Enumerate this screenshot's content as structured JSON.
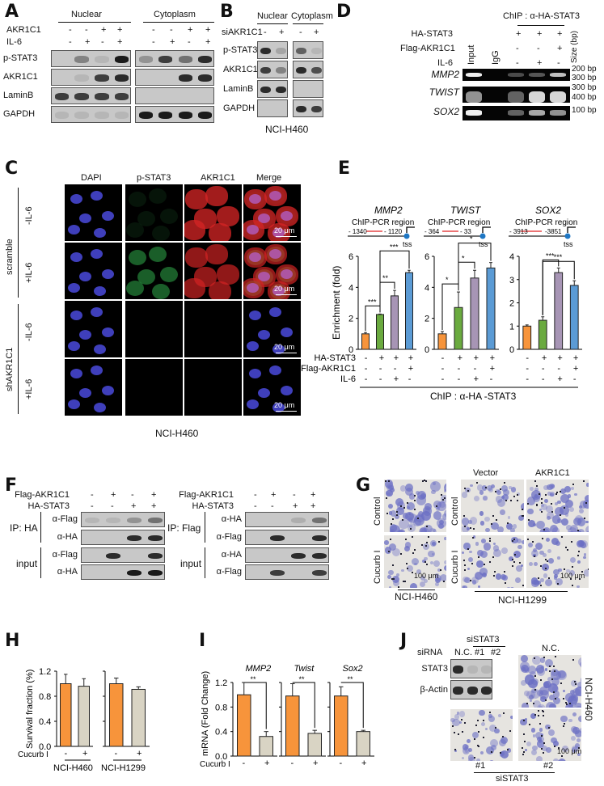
{
  "panels": {
    "A": "A",
    "B": "B",
    "C": "C",
    "D": "D",
    "E": "E",
    "F": "F",
    "G": "G",
    "H": "H",
    "I": "I",
    "J": "J"
  },
  "A": {
    "nuclear": "Nuclear",
    "cytoplasm": "Cytoplasm",
    "rows": [
      "AKR1C1",
      "IL-6"
    ],
    "signs": [
      [
        "-",
        "-",
        "+",
        "+",
        "-",
        "-",
        "+",
        "+"
      ],
      [
        "-",
        "+",
        "-",
        "+",
        "-",
        "+",
        "-",
        "+"
      ]
    ],
    "blots": [
      {
        "label": "p-STAT3",
        "nuc": [
          0,
          0.4,
          0.1,
          1
        ],
        "cyt": [
          0.3,
          0.8,
          0.5,
          0.9
        ]
      },
      {
        "label": "AKR1C1",
        "nuc": [
          0,
          0.1,
          0.8,
          0.9
        ],
        "cyt": [
          0,
          0,
          0.9,
          0.9
        ]
      },
      {
        "label": "LaminB",
        "nuc": [
          0.8,
          0.8,
          0.8,
          0.8
        ],
        "cyt": [
          0,
          0,
          0,
          0
        ]
      },
      {
        "label": "GAPDH",
        "nuc": [
          0.1,
          0.1,
          0.1,
          0.1
        ],
        "cyt": [
          1,
          1,
          1,
          1
        ]
      }
    ]
  },
  "B": {
    "nuclear": "Nuclear",
    "cytoplasm": "Cytoplasm",
    "row": "siAKR1C1",
    "signs": [
      "-",
      "+",
      "-",
      "+"
    ],
    "cell": "NCI-H460",
    "blots": [
      {
        "label": "p-STAT3",
        "nuc": [
          0.9,
          0.2
        ],
        "cyt": [
          0.6,
          0.1
        ]
      },
      {
        "label": "AKR1C1",
        "nuc": [
          0.8,
          0.4
        ],
        "cyt": [
          0.9,
          0.7
        ]
      },
      {
        "label": "LaminB",
        "nuc": [
          0.9,
          0.9
        ],
        "cyt": [
          0,
          0
        ]
      },
      {
        "label": "GAPDH",
        "nuc": [
          0,
          0
        ],
        "cyt": [
          0.9,
          0.8
        ]
      }
    ]
  },
  "D": {
    "header": "ChIP : α-HA-STAT3",
    "rows": [
      {
        "label": "HA-STAT3",
        "signs": [
          "+",
          "+",
          "+"
        ]
      },
      {
        "label": "Flag-AKR1C1",
        "signs": [
          "-",
          "-",
          "+"
        ]
      },
      {
        "label": "IL-6",
        "signs": [
          "-",
          "+",
          "-"
        ]
      }
    ],
    "lanes": [
      "Input",
      "IgG"
    ],
    "size_header": "Size (bp)",
    "gels": [
      {
        "label": "MMP2",
        "bands": [
          1,
          0,
          0.3,
          0.35,
          0.8
        ],
        "sizes": [
          "200 bp",
          "300 bp"
        ]
      },
      {
        "label": "TWIST",
        "bands": [
          0.6,
          0,
          0.4,
          0.9,
          0.9
        ],
        "sizes": [
          "300 bp",
          "400 bp"
        ]
      },
      {
        "label": "SOX2",
        "bands": [
          1,
          0,
          0.4,
          0.7,
          0.6
        ],
        "sizes": [
          "100 bp"
        ]
      }
    ]
  },
  "C": {
    "columns": [
      "DAPI",
      "p-STAT3",
      "AKR1C1",
      "Merge"
    ],
    "groups": [
      {
        "label": "scramble",
        "rows": [
          "-IL-6",
          "+IL-6"
        ]
      },
      {
        "label": "shAKR1C1",
        "rows": [
          "-IL-6",
          "+IL-6"
        ]
      }
    ],
    "scale": "20 μm",
    "cell": "NCI-H460",
    "intensity": {
      "pstat3": [
        0.15,
        0.7,
        0.05,
        0.05
      ],
      "akr1c1": [
        0.9,
        0.8,
        0.05,
        0.05
      ]
    },
    "colors": {
      "dapi": "#4a4adc",
      "pstat3": "#2fa84a",
      "akr1c1": "#d42424"
    }
  },
  "E": {
    "ylabel": "Enrichment (fold)",
    "region_label": "ChIP-PCR region",
    "tss": "tss",
    "row_labels": [
      "HA-STAT3",
      "Flag-AKR1C1",
      "IL-6"
    ],
    "signs": [
      [
        "-",
        "+",
        "+",
        "+"
      ],
      [
        "-",
        "-",
        "-",
        "+"
      ],
      [
        "-",
        "-",
        "+",
        "-"
      ]
    ],
    "footer": "ChIP : α-HA -STAT3",
    "genes": [
      {
        "name": "MMP2",
        "coords": [
          "- 1340",
          "- 1120"
        ]
      },
      {
        "name": "TWIST",
        "coords": [
          "- 364",
          "- 33"
        ]
      },
      {
        "name": "SOX2",
        "coords": [
          "- 3913",
          "-3851"
        ]
      }
    ]
  },
  "F": {
    "row_labels": [
      "Flag-AKR1C1",
      "HA-STAT3"
    ],
    "signs": [
      [
        "-",
        "+",
        "-",
        "+"
      ],
      [
        "-",
        "-",
        "+",
        "+"
      ]
    ],
    "left": {
      "ip": "IP: HA",
      "input": "input",
      "blots": [
        {
          "label": "α-Flag",
          "bands": [
            0.1,
            0.1,
            0.3,
            0.5
          ]
        },
        {
          "label": "α-HA",
          "bands": [
            0,
            0,
            0.9,
            0.9
          ]
        },
        {
          "label": "α-Flag",
          "bands": [
            0,
            0.9,
            0,
            0.9
          ]
        },
        {
          "label": "α-HA",
          "bands": [
            0,
            0,
            1,
            1
          ]
        }
      ]
    },
    "right": {
      "ip": "IP: Flag",
      "input": "input",
      "blots": [
        {
          "label": "α-HA",
          "bands": [
            0,
            0,
            0.15,
            0.5
          ]
        },
        {
          "label": "α-Flag",
          "bands": [
            0,
            0.9,
            0,
            0.9
          ]
        },
        {
          "label": "α-HA",
          "bands": [
            0,
            0,
            0.9,
            0.9
          ]
        },
        {
          "label": "α-Flag",
          "bands": [
            0,
            0.8,
            0,
            0.8
          ]
        }
      ]
    }
  },
  "G": {
    "columns": [
      "Vector",
      "AKR1C1"
    ],
    "rows": [
      "Control",
      "Cucurb I"
    ],
    "scale": "100 μm",
    "cells": [
      "NCI-H460",
      "NCI-H1299"
    ]
  },
  "J": {
    "group": "siSTAT3",
    "row": "siRNA",
    "lanes": [
      "N.C.",
      "#1",
      "#2"
    ],
    "blots": [
      {
        "label": "STAT3",
        "bands": [
          0.9,
          0.1,
          0.1
        ]
      },
      {
        "label": "β-Actin",
        "bands": [
          0.9,
          0.9,
          0.9
        ]
      }
    ],
    "image_label": "N.C.",
    "cell": "NCI-H460",
    "bottom": [
      "#1",
      "#2"
    ],
    "footer": "siSTAT3",
    "scale": "100 μm"
  },
  "colors": {
    "orange": "#f7943b",
    "green": "#6aaa3f",
    "purple": "#a795b5",
    "blue": "#5b9bd5",
    "beige": "#d9d4c4",
    "stain": "#6b6fc4"
  },
  "chart_data": [
    {
      "panel": "E",
      "type": "bar",
      "title": "MMP2",
      "ylabel": "Enrichment (fold)",
      "ylim": [
        0,
        6
      ],
      "yticks": [
        0,
        2,
        4,
        6
      ],
      "values": [
        1.0,
        2.25,
        3.45,
        4.95
      ],
      "errors": [
        0.08,
        0.03,
        0.35,
        0.15
      ],
      "colors": [
        "#f7943b",
        "#6aaa3f",
        "#a795b5",
        "#5b9bd5"
      ],
      "sig": [
        {
          "from": 0,
          "to": 1,
          "label": "***"
        },
        {
          "from": 1,
          "to": 2,
          "label": "**"
        },
        {
          "from": 1,
          "to": 3,
          "label": "***"
        }
      ]
    },
    {
      "panel": "E",
      "type": "bar",
      "title": "TWIST",
      "ylim": [
        0,
        6
      ],
      "yticks": [
        0,
        2,
        4,
        6
      ],
      "values": [
        1.0,
        2.7,
        4.6,
        5.25
      ],
      "errors": [
        0.15,
        1.0,
        0.5,
        0.35
      ],
      "colors": [
        "#f7943b",
        "#6aaa3f",
        "#a795b5",
        "#5b9bd5"
      ],
      "sig": [
        {
          "from": 0,
          "to": 1,
          "label": "*"
        },
        {
          "from": 1,
          "to": 2,
          "label": "*"
        },
        {
          "from": 1,
          "to": 3,
          "label": "*"
        }
      ]
    },
    {
      "panel": "E",
      "type": "bar",
      "title": "SOX2",
      "ylim": [
        0,
        4
      ],
      "yticks": [
        0,
        1,
        2,
        3,
        4
      ],
      "values": [
        1.0,
        1.25,
        3.3,
        2.75
      ],
      "errors": [
        0.05,
        0.15,
        0.2,
        0.2
      ],
      "colors": [
        "#f7943b",
        "#6aaa3f",
        "#a795b5",
        "#5b9bd5"
      ],
      "sig": [
        {
          "from": 1,
          "to": 2,
          "label": "***"
        },
        {
          "from": 1,
          "to": 3,
          "label": "***"
        }
      ]
    },
    {
      "panel": "H",
      "type": "bar",
      "ylabel": "Survival fraction (%)",
      "xlabel": "Cucurb I",
      "ylim": [
        0,
        1.2
      ],
      "yticks": [
        "0.0",
        "0.4",
        "0.8",
        "1.2"
      ],
      "groups": [
        {
          "name": "NCI-H460",
          "values": [
            1.0,
            0.96
          ],
          "errors": [
            0.15,
            0.12
          ]
        },
        {
          "name": "NCI-H1299",
          "values": [
            1.0,
            0.91
          ],
          "errors": [
            0.09,
            0.04
          ]
        }
      ],
      "categories": [
        "-",
        "+"
      ]
    },
    {
      "panel": "I",
      "type": "bar",
      "ylabel": "mRNA (Fold Change)",
      "xlabel": "Cucurb I",
      "ylim": [
        0,
        1.2
      ],
      "yticks": [
        "0.0",
        "0.4",
        "0.8",
        "1.2"
      ],
      "categories": [
        "-",
        "+"
      ],
      "groups": [
        {
          "name": "MMP2",
          "values": [
            1.0,
            0.32
          ],
          "errors": [
            0.2,
            0.08
          ],
          "sig": "**"
        },
        {
          "name": "Twist",
          "values": [
            0.98,
            0.37
          ],
          "errors": [
            0.2,
            0.05
          ],
          "sig": "**"
        },
        {
          "name": "Sox2",
          "values": [
            0.98,
            0.4
          ],
          "errors": [
            0.15,
            0.02
          ],
          "sig": "**"
        }
      ]
    }
  ]
}
